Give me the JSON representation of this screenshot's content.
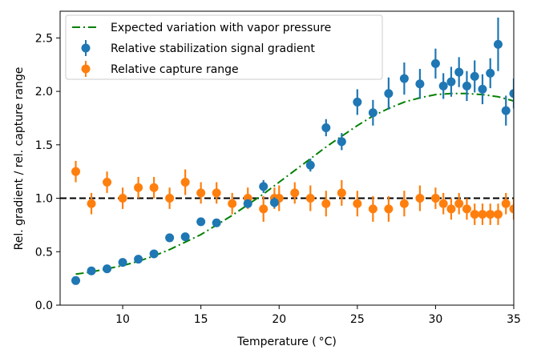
{
  "chart_data": {
    "type": "scatter",
    "xlabel": "Temperature ( °C)",
    "ylabel": "Rel. gradient / rel. capture range",
    "xlim": [
      6,
      35
    ],
    "ylim": [
      0.0,
      2.75
    ],
    "xticks": [
      10,
      15,
      20,
      25,
      30,
      35
    ],
    "yticks": [
      0.0,
      0.5,
      1.0,
      1.5,
      2.0,
      2.5
    ],
    "xtick_labels": [
      "10",
      "15",
      "20",
      "25",
      "30",
      "35"
    ],
    "ytick_labels": [
      "0.0",
      "0.5",
      "1.0",
      "1.5",
      "2.0",
      "2.5"
    ],
    "legend_position": "top-left",
    "reference_line": {
      "y": 1.0,
      "style": "dashed",
      "color": "#000000"
    },
    "curve": {
      "name": "Expected variation with vapor pressure",
      "color": "#008000",
      "style": "dashdot",
      "x": [
        7,
        8,
        9,
        10,
        11,
        12,
        13,
        14,
        15,
        16,
        17,
        18,
        19,
        20,
        21,
        22,
        23,
        24,
        25,
        26,
        27,
        28,
        29,
        30,
        31,
        32,
        33,
        34,
        35
      ],
      "y": [
        0.29,
        0.31,
        0.34,
        0.37,
        0.41,
        0.46,
        0.52,
        0.59,
        0.66,
        0.75,
        0.84,
        0.94,
        1.04,
        1.15,
        1.26,
        1.37,
        1.48,
        1.58,
        1.68,
        1.77,
        1.84,
        1.9,
        1.94,
        1.97,
        1.98,
        1.98,
        1.97,
        1.95,
        1.91
      ]
    },
    "series": [
      {
        "name": "Relative stabilization signal gradient",
        "color": "#1f77b4",
        "points": [
          {
            "x": 7,
            "y": 0.23,
            "err": 0.0
          },
          {
            "x": 8,
            "y": 0.32,
            "err": 0.0
          },
          {
            "x": 9,
            "y": 0.34,
            "err": 0.0
          },
          {
            "x": 10,
            "y": 0.4,
            "err": 0.0
          },
          {
            "x": 11,
            "y": 0.43,
            "err": 0.0
          },
          {
            "x": 12,
            "y": 0.48,
            "err": 0.0
          },
          {
            "x": 13,
            "y": 0.63,
            "err": 0.0
          },
          {
            "x": 14,
            "y": 0.64,
            "err": 0.0
          },
          {
            "x": 15,
            "y": 0.78,
            "err": 0.0
          },
          {
            "x": 16,
            "y": 0.77,
            "err": 0.0
          },
          {
            "x": 18,
            "y": 0.95,
            "err": 0.0
          },
          {
            "x": 19,
            "y": 1.11,
            "err": 0.06
          },
          {
            "x": 19.7,
            "y": 0.96,
            "err": 0.05
          },
          {
            "x": 22,
            "y": 1.31,
            "err": 0.06
          },
          {
            "x": 23,
            "y": 1.66,
            "err": 0.08
          },
          {
            "x": 24,
            "y": 1.53,
            "err": 0.08
          },
          {
            "x": 25,
            "y": 1.9,
            "err": 0.12
          },
          {
            "x": 26,
            "y": 1.8,
            "err": 0.12
          },
          {
            "x": 27,
            "y": 1.98,
            "err": 0.15
          },
          {
            "x": 28,
            "y": 2.12,
            "err": 0.15
          },
          {
            "x": 29,
            "y": 2.07,
            "err": 0.14
          },
          {
            "x": 30,
            "y": 2.26,
            "err": 0.14
          },
          {
            "x": 30.5,
            "y": 2.05,
            "err": 0.12
          },
          {
            "x": 31,
            "y": 2.09,
            "err": 0.14
          },
          {
            "x": 31.5,
            "y": 2.18,
            "err": 0.14
          },
          {
            "x": 32,
            "y": 2.05,
            "err": 0.14
          },
          {
            "x": 32.5,
            "y": 2.14,
            "err": 0.15
          },
          {
            "x": 33,
            "y": 2.02,
            "err": 0.14
          },
          {
            "x": 33.5,
            "y": 2.17,
            "err": 0.14
          },
          {
            "x": 34,
            "y": 2.44,
            "err": 0.25
          },
          {
            "x": 34.5,
            "y": 1.82,
            "err": 0.14
          },
          {
            "x": 35,
            "y": 1.98,
            "err": 0.14
          }
        ]
      },
      {
        "name": "Relative capture range",
        "color": "#ff7f0e",
        "points": [
          {
            "x": 7,
            "y": 1.25,
            "err": 0.1
          },
          {
            "x": 8,
            "y": 0.95,
            "err": 0.1
          },
          {
            "x": 9,
            "y": 1.15,
            "err": 0.1
          },
          {
            "x": 10,
            "y": 1.0,
            "err": 0.1
          },
          {
            "x": 11,
            "y": 1.1,
            "err": 0.1
          },
          {
            "x": 12,
            "y": 1.1,
            "err": 0.1
          },
          {
            "x": 13,
            "y": 1.0,
            "err": 0.1
          },
          {
            "x": 14,
            "y": 1.15,
            "err": 0.12
          },
          {
            "x": 15,
            "y": 1.05,
            "err": 0.1
          },
          {
            "x": 16,
            "y": 1.05,
            "err": 0.1
          },
          {
            "x": 17,
            "y": 0.95,
            "err": 0.1
          },
          {
            "x": 18,
            "y": 1.0,
            "err": 0.1
          },
          {
            "x": 19,
            "y": 0.9,
            "err": 0.12
          },
          {
            "x": 19.7,
            "y": 1.0,
            "err": 0.1
          },
          {
            "x": 20,
            "y": 1.0,
            "err": 0.12
          },
          {
            "x": 21,
            "y": 1.05,
            "err": 0.1
          },
          {
            "x": 22,
            "y": 1.0,
            "err": 0.12
          },
          {
            "x": 23,
            "y": 0.95,
            "err": 0.12
          },
          {
            "x": 24,
            "y": 1.05,
            "err": 0.12
          },
          {
            "x": 25,
            "y": 0.95,
            "err": 0.12
          },
          {
            "x": 26,
            "y": 0.9,
            "err": 0.12
          },
          {
            "x": 27,
            "y": 0.9,
            "err": 0.12
          },
          {
            "x": 28,
            "y": 0.95,
            "err": 0.12
          },
          {
            "x": 29,
            "y": 1.0,
            "err": 0.12
          },
          {
            "x": 30,
            "y": 1.0,
            "err": 0.1
          },
          {
            "x": 30.5,
            "y": 0.95,
            "err": 0.1
          },
          {
            "x": 31,
            "y": 0.9,
            "err": 0.1
          },
          {
            "x": 31.5,
            "y": 0.95,
            "err": 0.1
          },
          {
            "x": 32,
            "y": 0.9,
            "err": 0.1
          },
          {
            "x": 32.5,
            "y": 0.85,
            "err": 0.1
          },
          {
            "x": 33,
            "y": 0.85,
            "err": 0.1
          },
          {
            "x": 33.5,
            "y": 0.85,
            "err": 0.1
          },
          {
            "x": 34,
            "y": 0.85,
            "err": 0.1
          },
          {
            "x": 34.5,
            "y": 0.95,
            "err": 0.1
          },
          {
            "x": 35,
            "y": 0.9,
            "err": 0.1
          }
        ]
      }
    ]
  }
}
